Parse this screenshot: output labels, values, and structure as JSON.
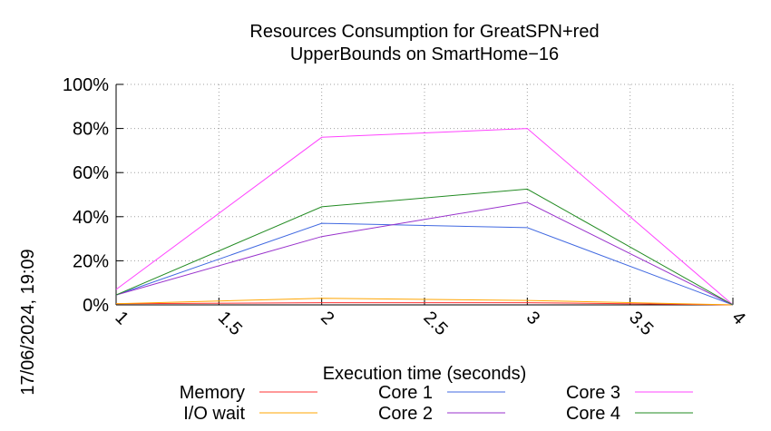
{
  "chart_data": {
    "type": "line",
    "title_lines": [
      "Resources Consumption for GreatSPN+red",
      "UpperBounds on SmartHome−16"
    ],
    "xlabel": "Execution time (seconds)",
    "ylabel": "",
    "xlim": [
      1,
      4
    ],
    "ylim": [
      0,
      100
    ],
    "x_ticks": [
      1,
      1.5,
      2,
      2.5,
      3,
      3.5,
      4
    ],
    "x_tick_labels": [
      "1",
      "1.5",
      "2",
      "2.5",
      "3",
      "3.5",
      "4"
    ],
    "y_ticks": [
      0,
      20,
      40,
      60,
      80,
      100
    ],
    "y_tick_labels": [
      "0%",
      "20%",
      "40%",
      "60%",
      "80%",
      "100%"
    ],
    "grid": true,
    "legend_position": "bottom",
    "x": [
      1,
      2,
      3,
      4
    ],
    "series": [
      {
        "name": "Memory",
        "color": "#ff3333",
        "values": [
          0.5,
          1.0,
          1.0,
          0
        ]
      },
      {
        "name": "I/O wait",
        "color": "#ffa500",
        "values": [
          0.5,
          3.0,
          2.0,
          0
        ]
      },
      {
        "name": "Core 1",
        "color": "#4169e1",
        "values": [
          4.5,
          37,
          35,
          0
        ]
      },
      {
        "name": "Core 2",
        "color": "#9932cc",
        "values": [
          4.5,
          31,
          46.5,
          0
        ]
      },
      {
        "name": "Core 3",
        "color": "#ff44ff",
        "values": [
          7,
          76,
          80,
          0
        ]
      },
      {
        "name": "Core 4",
        "color": "#228b22",
        "values": [
          4.5,
          44.5,
          52.5,
          0
        ]
      }
    ]
  },
  "timestamp": "17/06/2024, 19:09"
}
